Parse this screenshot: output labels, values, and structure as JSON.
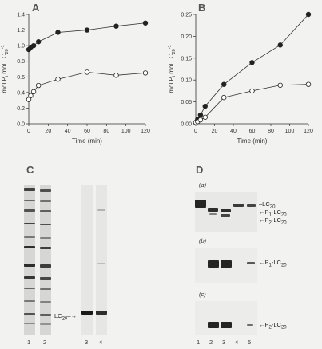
{
  "panels": {
    "A": {
      "letter": "A"
    },
    "B": {
      "letter": "B"
    },
    "C": {
      "letter": "C",
      "band_label": "LC",
      "band_sub": "20",
      "lanes": [
        "1",
        "2",
        "3",
        "4"
      ]
    },
    "D": {
      "letter": "D",
      "subpanels": [
        {
          "tag": "(a)",
          "labels": [
            {
              "base": "LC",
              "sub": "20",
              "pre": ""
            },
            {
              "base": "-LC",
              "sub": "20",
              "pre": "P1"
            },
            {
              "base": "-LC",
              "sub": "20",
              "pre": "P2"
            }
          ]
        },
        {
          "tag": "(b)",
          "labels": [
            {
              "base": "-LC",
              "sub": "20",
              "pre": "P1"
            }
          ]
        },
        {
          "tag": "(c)",
          "labels": [
            {
              "base": "-LC",
              "sub": "20",
              "pre": "P2"
            }
          ]
        }
      ],
      "lanes": [
        "1",
        "2",
        "3",
        "4",
        "5"
      ]
    }
  },
  "chart_data": [
    {
      "type": "line",
      "panel": "A",
      "xlabel": "Time (min)",
      "ylabel": "mol Pi mol LC20-1",
      "xlim": [
        0,
        120
      ],
      "ylim": [
        0,
        1.4
      ],
      "xticks": [
        0,
        20,
        40,
        60,
        80,
        100,
        120
      ],
      "yticks": [
        "0.0",
        "0.2",
        "0.4",
        "0.6",
        "0.8",
        "1.0",
        "1.2",
        "1.4"
      ],
      "series": [
        {
          "marker": "filled",
          "x": [
            0,
            2,
            5,
            10,
            30,
            60,
            90,
            120
          ],
          "y": [
            0.95,
            0.98,
            1.0,
            1.05,
            1.17,
            1.2,
            1.25,
            1.29
          ]
        },
        {
          "marker": "open",
          "x": [
            0,
            2,
            5,
            10,
            30,
            60,
            90,
            120
          ],
          "y": [
            0.31,
            0.36,
            0.41,
            0.49,
            0.57,
            0.66,
            0.62,
            0.65
          ]
        }
      ]
    },
    {
      "type": "line",
      "panel": "B",
      "xlabel": "Time (min)",
      "ylabel": "mol Pi mol LC20-1",
      "xlim": [
        0,
        120
      ],
      "ylim": [
        0,
        0.25
      ],
      "xticks": [
        0,
        20,
        40,
        60,
        80,
        100,
        120
      ],
      "yticks": [
        "0.00",
        "0.05",
        "0.10",
        "0.15",
        "0.20",
        "0.25"
      ],
      "series": [
        {
          "marker": "filled",
          "x": [
            0,
            2,
            5,
            10,
            30,
            60,
            90,
            120
          ],
          "y": [
            0.003,
            0.01,
            0.02,
            0.04,
            0.09,
            0.14,
            0.18,
            0.25
          ]
        },
        {
          "marker": "open",
          "x": [
            0,
            2,
            5,
            10,
            30,
            60,
            90,
            120
          ],
          "y": [
            0.003,
            0.005,
            0.009,
            0.015,
            0.06,
            0.075,
            0.088,
            0.09
          ]
        }
      ]
    }
  ]
}
